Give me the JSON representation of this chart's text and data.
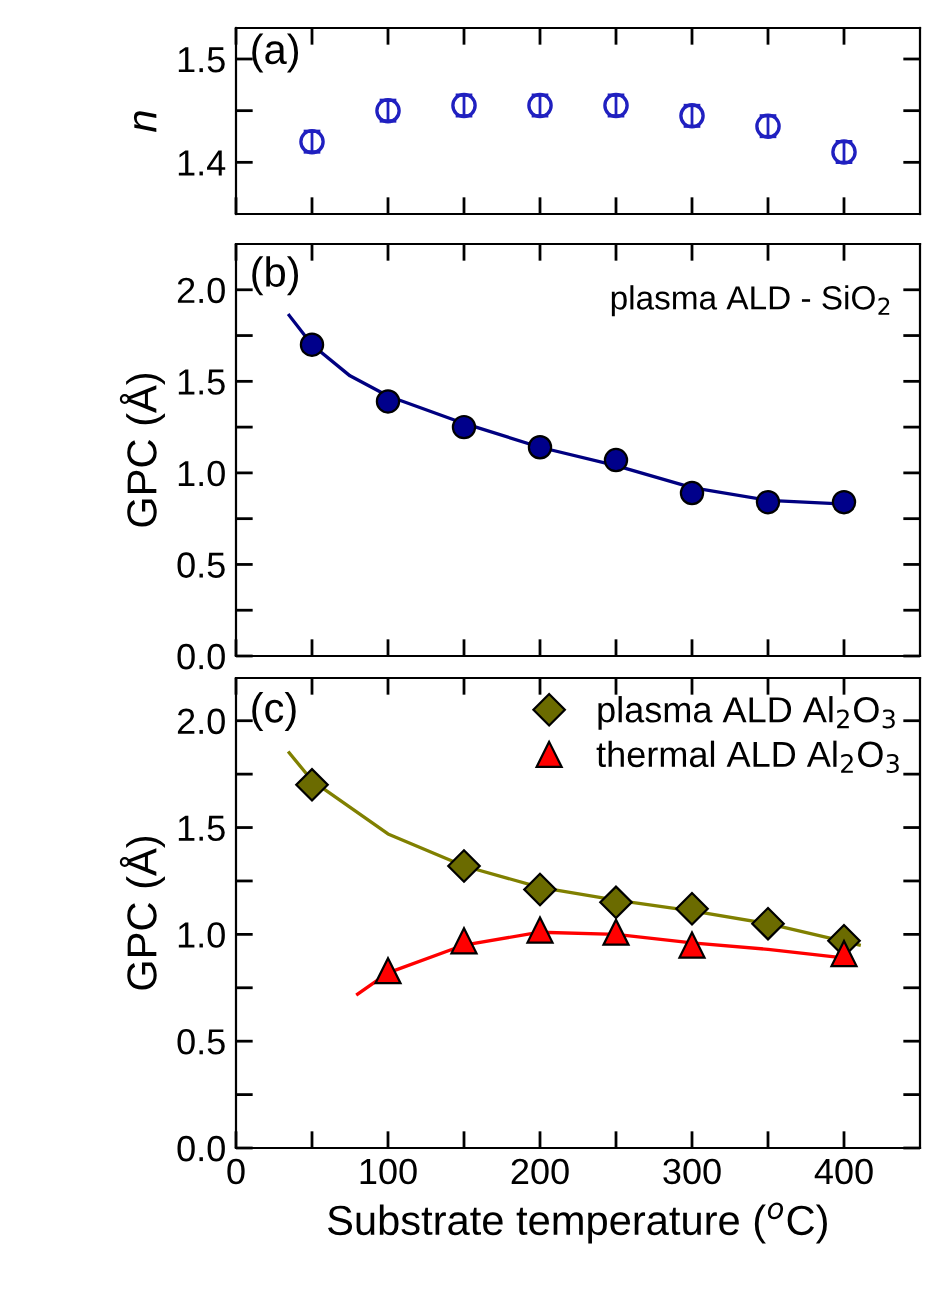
{
  "chart_data": [
    {
      "type": "scatter",
      "ylabel": "n",
      "annotations": [
        "(a)"
      ],
      "xlim": [
        0,
        450
      ],
      "xticks": [
        {
          "value": 0,
          "label": null
        },
        {
          "value": 50,
          "label": null
        },
        {
          "value": 100,
          "label": null
        },
        {
          "value": 150,
          "label": null
        },
        {
          "value": 200,
          "label": null
        },
        {
          "value": 250,
          "label": null
        },
        {
          "value": 300,
          "label": null
        },
        {
          "value": 350,
          "label": null
        },
        {
          "value": 400,
          "label": null
        }
      ],
      "ylim": [
        1.35,
        1.53
      ],
      "yticks": [
        {
          "value": 1.4,
          "label": "1.4"
        },
        {
          "value": 1.45,
          "label": null
        },
        {
          "value": 1.5,
          "label": "1.5"
        }
      ],
      "tick_labels": "y",
      "grid": false,
      "legend": false,
      "series": [
        {
          "marker": "circle",
          "color": "#2020c0",
          "x": [
            50,
            100,
            150,
            200,
            250,
            300,
            350,
            400
          ],
          "values": [
            1.42,
            1.45,
            1.455,
            1.455,
            1.455,
            1.445,
            1.435,
            1.41
          ],
          "errors": [
            0.01,
            0.01,
            0.01,
            0.01,
            0.01,
            0.01,
            0.01,
            0.01
          ]
        }
      ]
    },
    {
      "type": "scatter",
      "ylabel": "GPC (Å)",
      "annotations": [
        "(b)",
        "plasma ALD - SiO$_{2}$"
      ],
      "xlim": [
        0,
        450
      ],
      "xticks": [
        {
          "value": 0,
          "label": null
        },
        {
          "value": 50,
          "label": null
        },
        {
          "value": 100,
          "label": null
        },
        {
          "value": 150,
          "label": null
        },
        {
          "value": 200,
          "label": null
        },
        {
          "value": 250,
          "label": null
        },
        {
          "value": 300,
          "label": null
        },
        {
          "value": 350,
          "label": null
        },
        {
          "value": 400,
          "label": null
        }
      ],
      "ylim": [
        0,
        2.25
      ],
      "yticks": [
        {
          "value": 0,
          "label": "0.0"
        },
        {
          "value": 0.25,
          "label": null
        },
        {
          "value": 0.5,
          "label": "0.5"
        },
        {
          "value": 0.75,
          "label": null
        },
        {
          "value": 1,
          "label": "1.0"
        },
        {
          "value": 1.25,
          "label": null
        },
        {
          "value": 1.5,
          "label": "1.5"
        },
        {
          "value": 1.75,
          "label": null
        },
        {
          "value": 2,
          "label": "2.0"
        }
      ],
      "tick_labels": "y",
      "grid": false,
      "legend": false,
      "series": [
        {
          "type": "line",
          "marker": "none",
          "color": "#000080",
          "x": [
            35,
            50,
            75,
            100,
            150,
            200,
            250,
            300,
            350,
            400
          ],
          "values": [
            1.86,
            1.7,
            1.53,
            1.42,
            1.27,
            1.14,
            1.04,
            0.92,
            0.85,
            0.83
          ]
        },
        {
          "marker": "circle",
          "color": "#00008b",
          "x": [
            50,
            100,
            150,
            200,
            250,
            300,
            350,
            400
          ],
          "values": [
            1.7,
            1.39,
            1.25,
            1.14,
            1.07,
            0.89,
            0.84,
            0.84
          ]
        }
      ]
    },
    {
      "type": "scatter",
      "ylabel": "GPC (Å)",
      "xlabel": "Substrate temperature ($^{o}$C)",
      "annotations": [
        "(c)"
      ],
      "xlim": [
        0,
        450
      ],
      "xticks": [
        0,
        {
          "value": 50,
          "label": null
        },
        100,
        {
          "value": 150,
          "label": null
        },
        200,
        {
          "value": 250,
          "label": null
        },
        300,
        {
          "value": 350,
          "label": null
        },
        400
      ],
      "ylim": [
        0,
        2.2
      ],
      "yticks": [
        {
          "value": 0,
          "label": "0.0"
        },
        {
          "value": 0.25,
          "label": null
        },
        {
          "value": 0.5,
          "label": "0.5"
        },
        {
          "value": 0.75,
          "label": null
        },
        {
          "value": 1,
          "label": "1.0"
        },
        {
          "value": 1.25,
          "label": null
        },
        {
          "value": 1.5,
          "label": "1.5"
        },
        {
          "value": 1.75,
          "label": null
        },
        {
          "value": 2,
          "label": "2.0"
        }
      ],
      "grid": false,
      "legend": "top right",
      "series": [
        {
          "type": "line",
          "marker": "none",
          "color": "#808000",
          "x": [
            35,
            50,
            100,
            150,
            200,
            250,
            300,
            350,
            410
          ],
          "values": [
            1.85,
            1.72,
            1.47,
            1.32,
            1.22,
            1.16,
            1.11,
            1.05,
            0.95
          ]
        },
        {
          "type": "line",
          "marker": "none",
          "color": "#ff0000",
          "x": [
            80,
            100,
            150,
            200,
            250,
            300,
            350,
            400
          ],
          "values": [
            0.72,
            0.82,
            0.95,
            1.01,
            1.0,
            0.96,
            0.93,
            0.89
          ]
        },
        {
          "name": "plasma ALD Al$_{2}$O$_{3}$",
          "marker": "diamond",
          "color": "#6b6b00",
          "x": [
            50,
            150,
            200,
            250,
            300,
            350,
            400
          ],
          "values": [
            1.7,
            1.32,
            1.21,
            1.15,
            1.12,
            1.05,
            0.97
          ]
        },
        {
          "name": "thermal ALD Al$_{2}$O$_{3}$",
          "marker": "triangle",
          "color": "#ff0000",
          "x": [
            100,
            150,
            200,
            250,
            300,
            400
          ],
          "values": [
            0.83,
            0.97,
            1.02,
            1.01,
            0.95,
            0.91
          ]
        }
      ]
    }
  ]
}
